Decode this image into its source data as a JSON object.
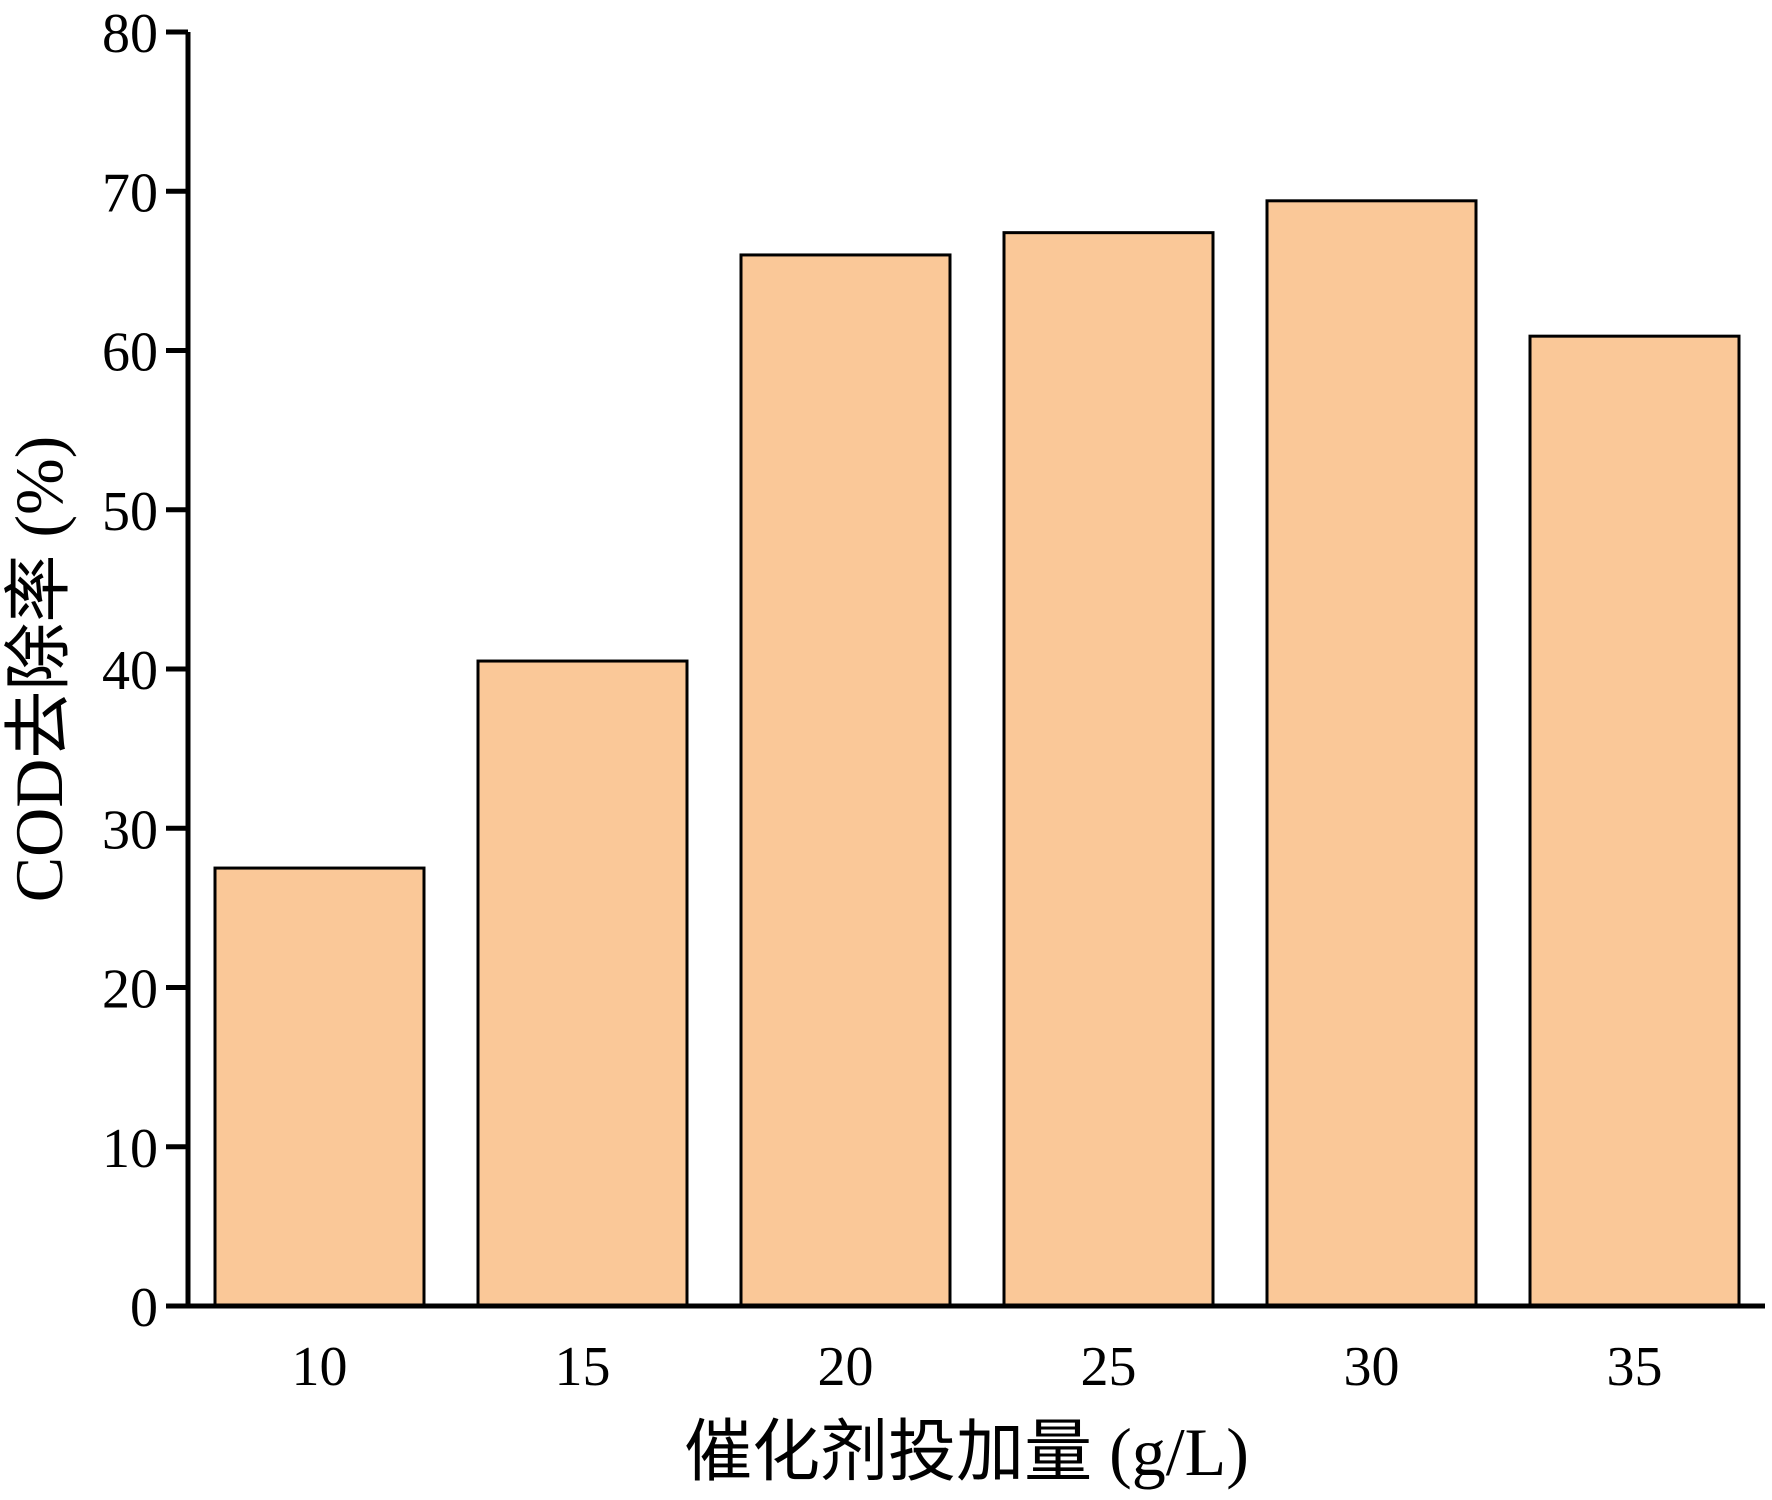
{
  "chart_data": {
    "type": "bar",
    "categories": [
      "10",
      "15",
      "20",
      "25",
      "30",
      "35"
    ],
    "values": [
      27.5,
      40.5,
      66.0,
      67.4,
      69.4,
      60.9
    ],
    "title": "",
    "xlabel": "催化剂投加量 (g/L)",
    "ylabel": "COD去除率 (%)",
    "ylim": [
      0,
      80
    ],
    "yticks": [
      "0",
      "10",
      "20",
      "30",
      "40",
      "50",
      "60",
      "70",
      "80"
    ],
    "grid": false,
    "legend": "none"
  },
  "colors": {
    "bar_fill": "#FAC898",
    "bar_stroke": "#000000",
    "axis": "#000000"
  }
}
